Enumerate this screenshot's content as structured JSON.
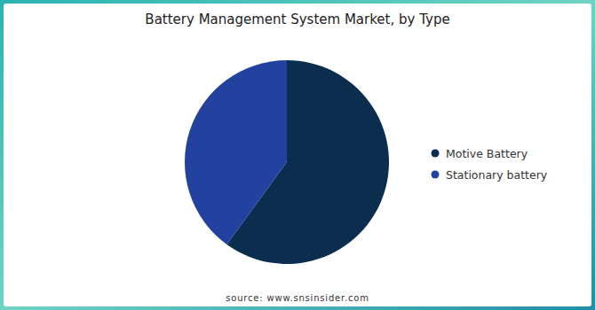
{
  "chart_data": {
    "type": "pie",
    "title": "Battery Management System Market, by Type",
    "categories": [
      "Motive Battery",
      "Stationary battery"
    ],
    "values": [
      60,
      40
    ],
    "colors": [
      "#0b2e4f",
      "#2342a0"
    ],
    "legend": "right",
    "source": "source: www.snsinsider.com"
  }
}
